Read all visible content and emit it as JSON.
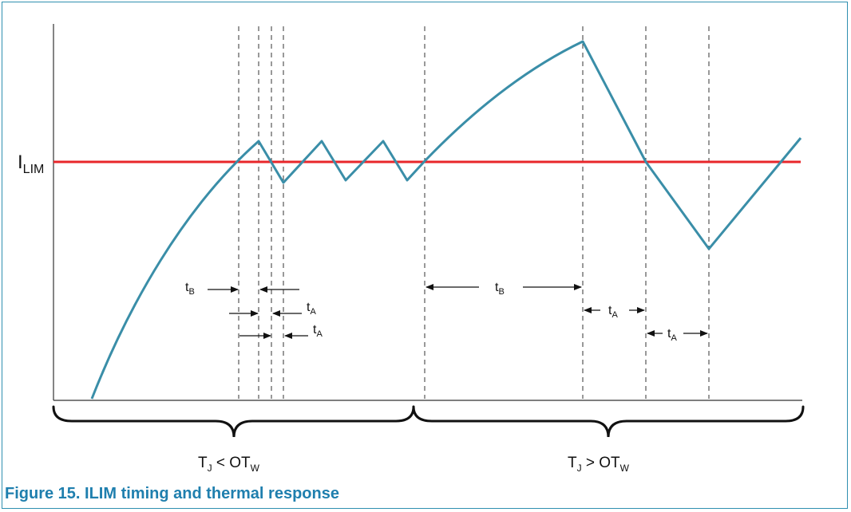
{
  "figure": {
    "caption": "Figure 15.  ILIM timing and thermal response",
    "y_label": {
      "base": "I",
      "sub": "LIM"
    },
    "time_labels": [
      {
        "base": "t",
        "sub": "B"
      },
      {
        "base": "t",
        "sub": "A"
      },
      {
        "base": "t",
        "sub": "A"
      },
      {
        "base": "t",
        "sub": "B"
      },
      {
        "base": "t",
        "sub": "A"
      },
      {
        "base": "t",
        "sub": "A"
      }
    ],
    "regions": [
      {
        "base": "T",
        "sub1": "J",
        "mid": " < OT",
        "sub2": "W"
      },
      {
        "base": "T",
        "sub1": "J",
        "mid": " > OT",
        "sub2": "W"
      }
    ]
  },
  "colors": {
    "current_trace": "#3a8ea8",
    "limit_line": "#e8262a",
    "guides": "#333333",
    "caption": "#1f7fae",
    "frame": "#2f8fb0"
  }
}
